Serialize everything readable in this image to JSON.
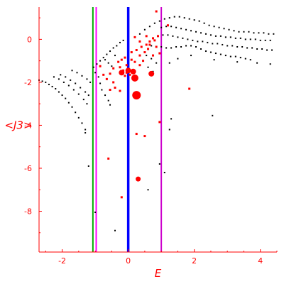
{
  "chart_data": {
    "type": "scatter",
    "xlabel": "E",
    "ylabel": "<J3>",
    "xlim": [
      -2.7,
      4.5
    ],
    "ylim": [
      -9.9,
      1.5
    ],
    "x_ticks": [
      -2,
      0,
      2,
      4
    ],
    "y_ticks": [
      0,
      -2,
      -4,
      -6,
      -8
    ],
    "axis_color": "#ff0000",
    "vertical_lines": [
      {
        "x": -1.07,
        "color": "#00aa00"
      },
      {
        "x": -0.97,
        "color": "#ff00ff"
      },
      {
        "x": 0.0,
        "color": "#0000ff"
      },
      {
        "x": 1.0,
        "color": "#cc00cc"
      }
    ],
    "series": [
      {
        "color": "#000000",
        "points": [
          [
            -2.7,
            -1.9
          ],
          [
            -2.6,
            -1.95
          ],
          [
            -2.5,
            -2.0
          ],
          [
            -2.4,
            -2.1
          ],
          [
            -2.3,
            -2.2
          ],
          [
            -2.2,
            -2.3
          ],
          [
            -2.1,
            -2.45
          ],
          [
            -2.0,
            -2.6
          ],
          [
            -1.9,
            -2.75
          ],
          [
            -1.8,
            -2.95
          ],
          [
            -1.7,
            -3.15
          ],
          [
            -1.6,
            -3.4
          ],
          [
            -1.5,
            -3.65
          ],
          [
            -1.4,
            -3.9
          ],
          [
            -1.3,
            -4.2
          ],
          [
            -2.25,
            -1.75
          ],
          [
            -2.1,
            -1.85
          ],
          [
            -1.95,
            -2.0
          ],
          [
            -1.8,
            -2.15
          ],
          [
            -1.65,
            -2.35
          ],
          [
            -1.5,
            -2.55
          ],
          [
            -1.35,
            -2.8
          ],
          [
            -1.25,
            -3.0
          ],
          [
            -2.05,
            -1.65
          ],
          [
            -1.9,
            -1.75
          ],
          [
            -1.75,
            -1.9
          ],
          [
            -1.6,
            -2.05
          ],
          [
            -1.45,
            -2.25
          ],
          [
            -1.3,
            -2.45
          ],
          [
            -1.2,
            -2.6
          ],
          [
            -1.7,
            -1.45
          ],
          [
            -1.55,
            -1.55
          ],
          [
            -1.4,
            -1.7
          ],
          [
            -1.25,
            -1.85
          ],
          [
            -1.15,
            -2.0
          ],
          [
            -1.3,
            -4.35
          ],
          [
            -1.2,
            -5.9
          ],
          [
            -1.0,
            -8.05
          ],
          [
            -0.4,
            -8.9
          ],
          [
            -1.05,
            -1.3
          ],
          [
            -0.95,
            -1.15
          ],
          [
            -0.85,
            -1.0
          ],
          [
            -0.75,
            -0.85
          ],
          [
            -0.65,
            -0.7
          ],
          [
            -0.55,
            -0.55
          ],
          [
            -0.45,
            -0.4
          ],
          [
            -0.35,
            -0.3
          ],
          [
            -0.25,
            -0.15
          ],
          [
            -0.15,
            -0.05
          ],
          [
            -1.0,
            -1.55
          ],
          [
            -0.9,
            -1.75
          ],
          [
            -0.85,
            -2.05
          ],
          [
            -0.8,
            -2.35
          ],
          [
            -0.7,
            -2.6
          ],
          [
            -0.6,
            -2.85
          ],
          [
            -0.55,
            -3.05
          ],
          [
            -0.7,
            -0.95
          ],
          [
            -0.6,
            -1.1
          ],
          [
            -0.5,
            -1.25
          ],
          [
            -0.4,
            -0.75
          ],
          [
            0.2,
            0.1
          ],
          [
            0.35,
            0.25
          ],
          [
            0.5,
            0.45
          ],
          [
            0.65,
            0.6
          ],
          [
            0.8,
            0.75
          ],
          [
            0.95,
            0.85
          ],
          [
            1.1,
            0.95
          ],
          [
            1.25,
            1.0
          ],
          [
            1.4,
            1.05
          ],
          [
            1.55,
            1.05
          ],
          [
            1.7,
            1.0
          ],
          [
            1.85,
            0.95
          ],
          [
            2.0,
            0.9
          ],
          [
            2.15,
            0.85
          ],
          [
            2.3,
            0.75
          ],
          [
            2.45,
            0.65
          ],
          [
            2.6,
            0.6
          ],
          [
            2.75,
            0.55
          ],
          [
            2.9,
            0.5
          ],
          [
            3.05,
            0.45
          ],
          [
            3.2,
            0.4
          ],
          [
            3.35,
            0.35
          ],
          [
            3.5,
            0.35
          ],
          [
            3.65,
            0.35
          ],
          [
            3.8,
            0.3
          ],
          [
            3.95,
            0.3
          ],
          [
            4.1,
            0.3
          ],
          [
            4.25,
            0.25
          ],
          [
            4.4,
            0.25
          ],
          [
            1.0,
            0.55
          ],
          [
            1.15,
            0.6
          ],
          [
            1.3,
            0.6
          ],
          [
            1.45,
            0.55
          ],
          [
            1.6,
            0.5
          ],
          [
            1.75,
            0.45
          ],
          [
            1.9,
            0.4
          ],
          [
            2.05,
            0.35
          ],
          [
            2.2,
            0.3
          ],
          [
            2.35,
            0.25
          ],
          [
            2.5,
            0.2
          ],
          [
            2.65,
            0.15
          ],
          [
            2.8,
            0.15
          ],
          [
            2.95,
            0.1
          ],
          [
            3.1,
            0.1
          ],
          [
            3.25,
            0.05
          ],
          [
            3.4,
            0.05
          ],
          [
            3.55,
            0.0
          ],
          [
            3.7,
            0.0
          ],
          [
            3.85,
            0.0
          ],
          [
            4.0,
            -0.05
          ],
          [
            4.15,
            -0.05
          ],
          [
            4.3,
            -0.05
          ],
          [
            0.9,
            0.15
          ],
          [
            1.05,
            0.2
          ],
          [
            1.2,
            0.2
          ],
          [
            1.35,
            0.15
          ],
          [
            1.5,
            0.1
          ],
          [
            1.65,
            0.05
          ],
          [
            1.8,
            0.0
          ],
          [
            1.95,
            -0.05
          ],
          [
            2.1,
            -0.1
          ],
          [
            2.25,
            -0.1
          ],
          [
            2.4,
            -0.15
          ],
          [
            2.55,
            -0.2
          ],
          [
            2.7,
            -0.2
          ],
          [
            2.85,
            -0.25
          ],
          [
            3.0,
            -0.3
          ],
          [
            3.15,
            -0.3
          ],
          [
            3.3,
            -0.35
          ],
          [
            3.45,
            -0.35
          ],
          [
            3.6,
            -0.4
          ],
          [
            3.75,
            -0.4
          ],
          [
            3.9,
            -0.45
          ],
          [
            4.05,
            -0.45
          ],
          [
            4.2,
            -0.5
          ],
          [
            4.35,
            -0.5
          ],
          [
            0.7,
            -0.3
          ],
          [
            0.85,
            -0.35
          ],
          [
            1.0,
            -0.35
          ],
          [
            1.15,
            -0.4
          ],
          [
            1.3,
            -0.4
          ],
          [
            1.45,
            -0.35
          ],
          [
            1.6,
            -0.35
          ],
          [
            1.75,
            -0.3
          ],
          [
            1.9,
            -0.3
          ],
          [
            2.05,
            -0.35
          ],
          [
            2.2,
            -0.45
          ],
          [
            2.35,
            -0.55
          ],
          [
            2.5,
            -0.6
          ],
          [
            2.65,
            -0.65
          ],
          [
            2.8,
            -0.7
          ],
          [
            2.95,
            -0.75
          ],
          [
            3.1,
            -0.8
          ],
          [
            3.25,
            -0.8
          ],
          [
            3.4,
            -0.85
          ],
          [
            3.55,
            -0.9
          ],
          [
            3.7,
            -0.95
          ],
          [
            0.55,
            -0.75
          ],
          [
            0.7,
            -0.9
          ],
          [
            0.85,
            -1.1
          ],
          [
            0.6,
            -1.3
          ],
          [
            0.75,
            -1.5
          ],
          [
            1.25,
            -1.1
          ],
          [
            1.5,
            -0.9
          ],
          [
            1.9,
            -0.75
          ],
          [
            2.6,
            -0.95
          ],
          [
            3.3,
            -1.05
          ],
          [
            3.9,
            -1.1
          ],
          [
            4.3,
            -1.15
          ],
          [
            1.3,
            -3.7
          ],
          [
            2.55,
            -3.55
          ],
          [
            1.25,
            -4.2
          ],
          [
            0.95,
            -5.8
          ],
          [
            1.1,
            -6.2
          ],
          [
            0.6,
            -7.0
          ]
        ]
      },
      {
        "color": "#ff0000",
        "points": [
          [
            -0.25,
            -1.3
          ],
          [
            -0.15,
            -1.45
          ],
          [
            -0.05,
            -1.55
          ],
          [
            0.05,
            -1.65
          ],
          [
            -0.2,
            -1.55
          ],
          [
            -0.1,
            -1.7
          ],
          [
            0.0,
            -1.45
          ],
          [
            0.15,
            -1.5
          ],
          [
            0.2,
            -1.8
          ],
          [
            -0.3,
            -1.05
          ],
          [
            -0.2,
            -0.95
          ],
          [
            -0.1,
            -0.85
          ],
          [
            0.1,
            -0.6
          ],
          [
            0.25,
            -0.5
          ],
          [
            0.4,
            -0.35
          ],
          [
            0.55,
            -0.25
          ],
          [
            0.65,
            -0.1
          ],
          [
            0.75,
            0.05
          ],
          [
            0.9,
            0.15
          ],
          [
            0.35,
            -0.75
          ],
          [
            0.5,
            -0.6
          ],
          [
            0.6,
            -0.45
          ],
          [
            0.2,
            -1.05
          ],
          [
            0.35,
            -1.2
          ],
          [
            0.45,
            -1.0
          ],
          [
            -0.45,
            -1.35
          ],
          [
            -0.55,
            -1.6
          ],
          [
            -0.65,
            -1.85
          ],
          [
            -0.45,
            -2.0
          ],
          [
            -0.4,
            -2.25
          ],
          [
            -0.25,
            -2.4
          ],
          [
            -0.55,
            -2.35
          ],
          [
            -0.75,
            -1.65
          ],
          [
            -0.85,
            -1.25
          ],
          [
            0.25,
            -2.6
          ],
          [
            0.7,
            -1.6
          ],
          [
            0.95,
            -0.65
          ],
          [
            0.85,
            -0.35
          ],
          [
            0.55,
            0.15
          ],
          [
            0.8,
            -0.05
          ],
          [
            1.2,
            0.65
          ],
          [
            0.2,
            0.1
          ],
          [
            0.35,
            -0.1
          ],
          [
            -0.6,
            -5.55
          ],
          [
            -0.2,
            -7.35
          ],
          [
            0.3,
            -6.5
          ],
          [
            0.5,
            -4.5
          ],
          [
            0.95,
            -3.85
          ],
          [
            0.25,
            -4.4
          ],
          [
            1.85,
            -2.3
          ],
          [
            0.85,
            1.3
          ],
          [
            0.65,
            -0.25
          ],
          [
            0.75,
            -0.75
          ],
          [
            0.1,
            -0.95
          ],
          [
            -0.05,
            -1.2
          ]
        ],
        "large_points": [
          [
            0.2,
            -1.8
          ],
          [
            0.25,
            -2.6
          ],
          [
            0.0,
            -1.45
          ],
          [
            0.15,
            -1.5
          ],
          [
            -0.2,
            -1.55
          ],
          [
            0.7,
            -1.6
          ],
          [
            0.3,
            -6.5
          ]
        ]
      }
    ]
  }
}
